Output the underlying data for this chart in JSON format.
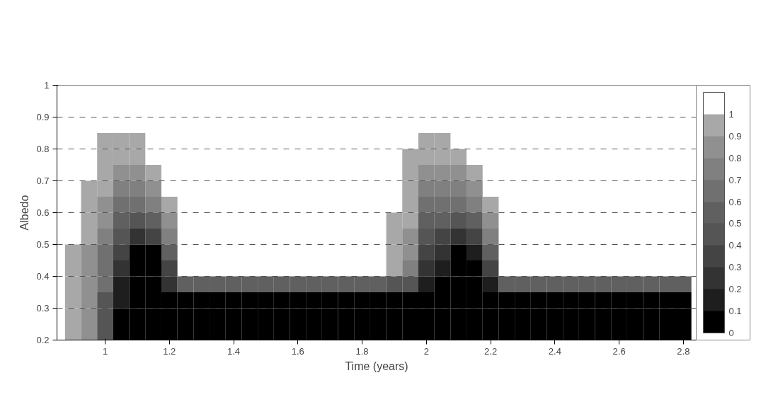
{
  "chart_data": {
    "type": "heatmap",
    "xlabel": "Time (years)",
    "ylabel": "Albedo",
    "x": [
      0.9,
      0.95,
      1.0,
      1.05,
      1.1,
      1.15,
      1.2,
      1.25,
      1.3,
      1.35,
      1.4,
      1.45,
      1.5,
      1.55,
      1.6,
      1.65,
      1.7,
      1.75,
      1.8,
      1.85,
      1.9,
      1.95,
      2.0,
      2.05,
      2.1,
      2.15,
      2.2,
      2.25,
      2.3,
      2.35,
      2.4,
      2.45,
      2.5,
      2.55,
      2.6,
      2.65,
      2.7,
      2.75,
      2.8
    ],
    "y": [
      0.825,
      0.775,
      0.725,
      0.675,
      0.625,
      0.575,
      0.525,
      0.475,
      0.425,
      0.375,
      0.325,
      0.275,
      0.225
    ],
    "cells": [
      [
        null,
        null,
        0.95,
        0.95,
        0.95,
        null,
        null,
        null,
        null,
        null,
        null,
        null,
        null,
        null,
        null,
        null,
        null,
        null,
        null,
        null,
        null,
        null,
        0.95,
        0.95,
        null,
        null,
        null,
        null,
        null,
        null,
        null,
        null,
        null,
        null,
        null,
        null,
        null,
        null,
        null
      ],
      [
        null,
        null,
        0.95,
        0.95,
        0.95,
        null,
        null,
        null,
        null,
        null,
        null,
        null,
        null,
        null,
        null,
        null,
        null,
        null,
        null,
        null,
        null,
        0.95,
        0.95,
        0.95,
        0.95,
        null,
        null,
        null,
        null,
        null,
        null,
        null,
        null,
        null,
        null,
        null,
        null,
        null,
        null
      ],
      [
        null,
        null,
        0.95,
        0.85,
        0.85,
        0.95,
        null,
        null,
        null,
        null,
        null,
        null,
        null,
        null,
        null,
        null,
        null,
        null,
        null,
        null,
        null,
        0.95,
        0.85,
        0.85,
        0.85,
        0.95,
        null,
        null,
        null,
        null,
        null,
        null,
        null,
        null,
        null,
        null,
        null,
        null,
        null
      ],
      [
        null,
        0.95,
        0.95,
        0.75,
        0.75,
        0.85,
        null,
        null,
        null,
        null,
        null,
        null,
        null,
        null,
        null,
        null,
        null,
        null,
        null,
        null,
        null,
        0.95,
        0.75,
        0.75,
        0.75,
        0.85,
        null,
        null,
        null,
        null,
        null,
        null,
        null,
        null,
        null,
        null,
        null,
        null,
        null
      ],
      [
        null,
        0.95,
        0.85,
        0.65,
        0.65,
        0.75,
        0.95,
        null,
        null,
        null,
        null,
        null,
        null,
        null,
        null,
        null,
        null,
        null,
        null,
        null,
        null,
        0.95,
        0.65,
        0.65,
        0.65,
        0.75,
        0.95,
        null,
        null,
        null,
        null,
        null,
        null,
        null,
        null,
        null,
        null,
        null,
        null
      ],
      [
        null,
        0.95,
        0.85,
        0.55,
        0.45,
        0.55,
        0.85,
        null,
        null,
        null,
        null,
        null,
        null,
        null,
        null,
        null,
        null,
        null,
        null,
        null,
        0.95,
        0.95,
        0.55,
        0.55,
        0.45,
        0.55,
        0.85,
        null,
        null,
        null,
        null,
        null,
        null,
        null,
        null,
        null,
        null,
        null,
        null
      ],
      [
        null,
        0.95,
        0.75,
        0.45,
        0.25,
        0.35,
        0.75,
        null,
        null,
        null,
        null,
        null,
        null,
        null,
        null,
        null,
        null,
        null,
        null,
        null,
        0.95,
        0.85,
        0.45,
        0.35,
        0.25,
        0.35,
        0.75,
        null,
        null,
        null,
        null,
        null,
        null,
        null,
        null,
        null,
        null,
        null,
        null
      ],
      [
        0.95,
        0.85,
        0.65,
        0.35,
        0.05,
        0.05,
        0.55,
        null,
        null,
        null,
        null,
        null,
        null,
        null,
        null,
        null,
        null,
        null,
        null,
        null,
        0.95,
        0.85,
        0.35,
        0.25,
        0.05,
        0.15,
        0.55,
        null,
        null,
        null,
        null,
        null,
        null,
        null,
        null,
        null,
        null,
        null,
        null
      ],
      [
        0.95,
        0.85,
        0.65,
        0.25,
        0.05,
        0.05,
        0.35,
        null,
        null,
        null,
        null,
        null,
        null,
        null,
        null,
        null,
        null,
        null,
        null,
        null,
        0.95,
        0.75,
        0.25,
        0.15,
        0.05,
        0.05,
        0.35,
        null,
        null,
        null,
        null,
        null,
        null,
        null,
        null,
        null,
        null,
        null,
        null
      ],
      [
        0.95,
        0.85,
        0.65,
        0.15,
        0.05,
        0.05,
        0.25,
        0.55,
        0.55,
        0.55,
        0.55,
        0.55,
        0.55,
        0.55,
        0.55,
        0.55,
        0.55,
        0.55,
        0.55,
        0.55,
        0.45,
        0.45,
        0.15,
        0.05,
        0.05,
        0.05,
        0.15,
        0.55,
        0.55,
        0.55,
        0.55,
        0.55,
        0.55,
        0.55,
        0.55,
        0.55,
        0.55,
        0.55,
        0.55
      ],
      [
        0.95,
        0.85,
        0.45,
        0.15,
        0.05,
        0.05,
        0.05,
        0.05,
        0.05,
        0.05,
        0.05,
        0.05,
        0.05,
        0.05,
        0.05,
        0.05,
        0.05,
        0.05,
        0.05,
        0.05,
        0.05,
        0.05,
        0.05,
        0.05,
        0.05,
        0.05,
        0.05,
        0.05,
        0.05,
        0.05,
        0.05,
        0.05,
        0.05,
        0.05,
        0.05,
        0.05,
        0.05,
        0.05,
        0.05
      ],
      [
        0.95,
        0.85,
        0.45,
        0.05,
        0.05,
        0.05,
        0.05,
        0.05,
        0.05,
        0.05,
        0.05,
        0.05,
        0.05,
        0.05,
        0.05,
        0.05,
        0.05,
        0.05,
        0.05,
        0.05,
        0.05,
        0.05,
        0.05,
        0.05,
        0.05,
        0.05,
        0.05,
        0.05,
        0.05,
        0.05,
        0.05,
        0.05,
        0.05,
        0.05,
        0.05,
        0.05,
        0.05,
        0.05,
        0.05
      ],
      [
        0.95,
        0.85,
        0.45,
        0.05,
        0.05,
        0.05,
        0.05,
        0.05,
        0.05,
        0.05,
        0.05,
        0.05,
        0.05,
        0.05,
        0.05,
        0.05,
        0.05,
        0.05,
        0.05,
        0.05,
        0.05,
        0.05,
        0.05,
        0.05,
        0.05,
        0.05,
        0.05,
        0.05,
        0.05,
        0.05,
        0.05,
        0.05,
        0.05,
        0.05,
        0.05,
        0.05,
        0.05,
        0.05,
        0.05
      ]
    ],
    "colors": [
      "#000000",
      "#1e1e1e",
      "#333333",
      "#444444",
      "#555555",
      "#606060",
      "#707070",
      "#808080",
      "#909090",
      "#a8a8a8",
      "#ffffff"
    ],
    "clim": [
      0,
      1.1
    ],
    "cticks": [
      0,
      0.1,
      0.2,
      0.3,
      0.4,
      0.5,
      0.6,
      0.7,
      0.8,
      0.9,
      1
    ],
    "xlim": [
      0.85,
      2.84
    ],
    "ylim": [
      0.2,
      1
    ],
    "xticks": [
      1,
      1.2,
      1.4,
      1.6,
      1.8,
      2,
      2.2,
      2.4,
      2.6,
      2.8
    ],
    "yticks": [
      0.2,
      0.3,
      0.4,
      0.5,
      0.6,
      0.7,
      0.8,
      0.9,
      1
    ],
    "grid": "y"
  }
}
